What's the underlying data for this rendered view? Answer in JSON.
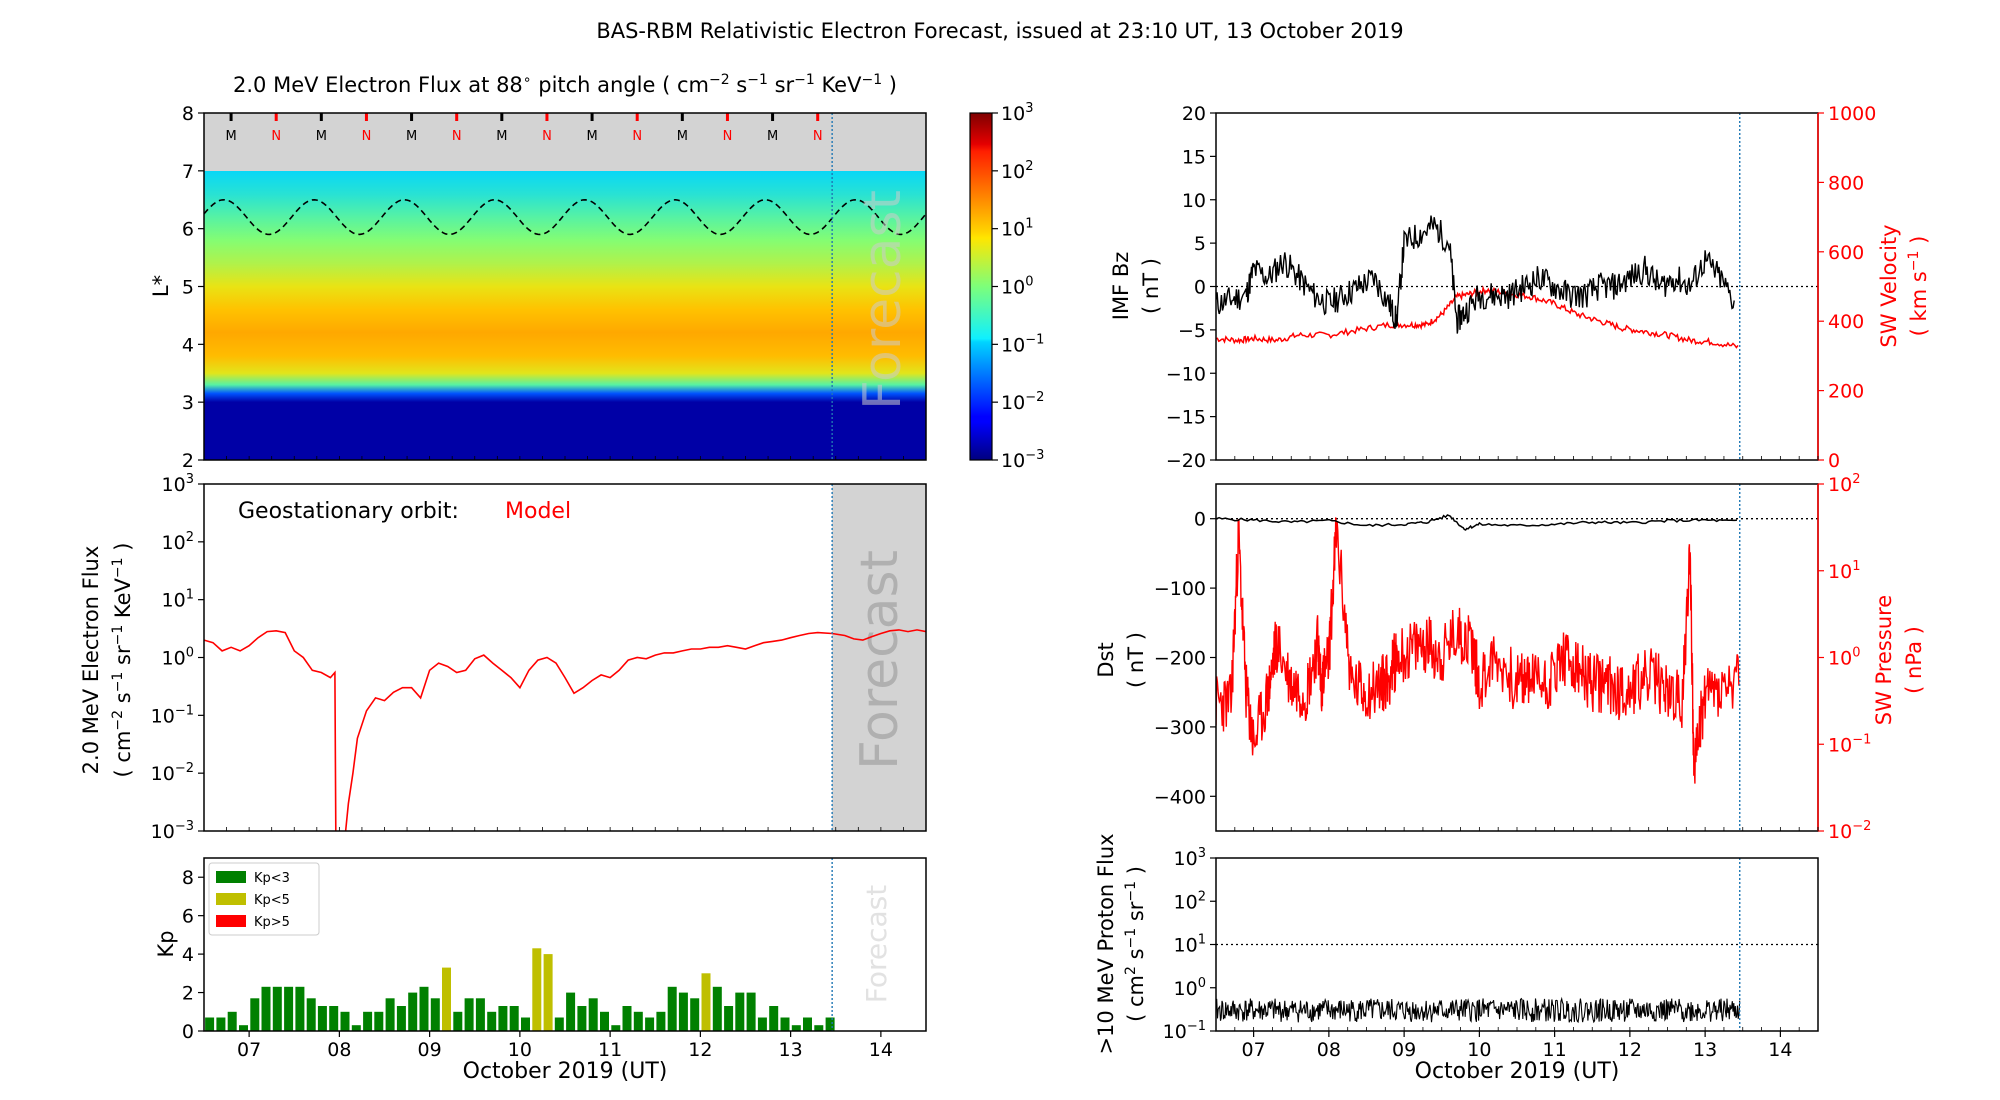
{
  "figure": {
    "title": "BAS-RBM Relativistic Electron Forecast, issued at 23:10 UT, 13 October 2019"
  },
  "colors": {
    "red": "#ff0000",
    "black": "#000000",
    "kp_low": "#008000",
    "kp_mid": "#bfbf00",
    "kp_high": "#ff0000",
    "forecast_shade": "#d3d3d3",
    "forecast_line": "#1f77b4",
    "mask": "#d3d3d3"
  },
  "chart_data": [
    {
      "type": "heatmap",
      "title": "2.0 MeV Electron Flux at 88$^\\circ$ pitch angle ( cm$^{-2}$ s$^{-1}$ sr$^{-1}$ KeV$^{-1}$ )",
      "title_parts": {
        "a": "2.0 MeV Electron Flux at 88",
        "deg": "∘",
        "b": " pitch angle ( cm",
        "e1": "−2",
        "c": " s",
        "e2": "−1",
        "d": " sr",
        "e3": "−1",
        "e": " KeV",
        "e4": "−1",
        "f": " )"
      },
      "ylabel": "L*",
      "xlim": [
        6.5,
        14.5
      ],
      "ylim": [
        2,
        8
      ],
      "yticks": [
        "2",
        "3",
        "4",
        "5",
        "6",
        "7",
        "8"
      ],
      "colorbar": {
        "scale": "log",
        "range": [
          0.001,
          1000
        ],
        "tick_base": "10",
        "tick_exps": [
          "−3",
          "−2",
          "−1",
          "0",
          "1",
          "2",
          "3"
        ]
      },
      "colormap": "jet",
      "profile": {
        "L": [
          2.0,
          3.0,
          3.15,
          3.3,
          3.5,
          3.8,
          4.2,
          4.6,
          5.0,
          5.4,
          5.8,
          6.2,
          6.6,
          7.0
        ],
        "log10_flux": [
          -2.8,
          -2.8,
          -1.8,
          -0.3,
          0.7,
          1.15,
          1.3,
          1.1,
          0.75,
          0.35,
          0.05,
          -0.3,
          -0.65,
          -0.9
        ]
      },
      "plasmapause_dashed": {
        "mean_L": 6.2,
        "amplitude": 0.3,
        "period_days": 1.0
      },
      "orbit_markers": {
        "labels": [
          "M",
          "N",
          "M",
          "N",
          "M",
          "N",
          "M",
          "N",
          "M",
          "N",
          "M",
          "N",
          "M",
          "N"
        ],
        "x": [
          6.8,
          7.3,
          7.8,
          8.3,
          8.8,
          9.3,
          9.8,
          10.3,
          10.8,
          11.3,
          11.8,
          12.3,
          12.8,
          13.3
        ],
        "colors": [
          "#000000",
          "#ff0000",
          "#000000",
          "#ff0000",
          "#000000",
          "#ff0000",
          "#000000",
          "#ff0000",
          "#000000",
          "#ff0000",
          "#000000",
          "#ff0000",
          "#000000",
          "#ff0000"
        ]
      },
      "forecast_start": 13.46,
      "forecast_label": "Forecast"
    },
    {
      "type": "line",
      "ylabel_line1": "2.0 MeV Electron Flux",
      "ylabel_line2_parts": {
        "a": "( cm",
        "e1": "−2",
        "b": " s",
        "e2": "−1",
        "c": " sr",
        "e3": "−1",
        "d": " KeV",
        "e4": "−1",
        "e": " )"
      },
      "yscale": "log",
      "ylim": [
        0.001,
        1000
      ],
      "ytick_base": "10",
      "ytick_exps": [
        "−3",
        "−2",
        "−1",
        "0",
        "1",
        "2",
        "3"
      ],
      "annotation_label": "Geostationary orbit:",
      "annotation_value": "Model",
      "series": [
        {
          "color": "#ff0000",
          "x": [
            6.5,
            6.6,
            6.7,
            6.8,
            6.9,
            7.0,
            7.1,
            7.2,
            7.3,
            7.4,
            7.5,
            7.6,
            7.7,
            7.8,
            7.9,
            7.95,
            7.96,
            7.98,
            8.05,
            8.1,
            8.15,
            8.2,
            8.3,
            8.4,
            8.5,
            8.6,
            8.7,
            8.8,
            8.9,
            9.0,
            9.1,
            9.2,
            9.3,
            9.4,
            9.5,
            9.6,
            9.7,
            9.8,
            9.9,
            10.0,
            10.1,
            10.2,
            10.3,
            10.4,
            10.5,
            10.6,
            10.7,
            10.8,
            10.9,
            11.0,
            11.1,
            11.2,
            11.3,
            11.4,
            11.5,
            11.6,
            11.7,
            11.8,
            11.9,
            12.0,
            12.1,
            12.2,
            12.3,
            12.4,
            12.5,
            12.6,
            12.7,
            12.8,
            12.9,
            13.0,
            13.1,
            13.2,
            13.3,
            13.46,
            13.6,
            13.7,
            13.8,
            13.9,
            14.0,
            14.1,
            14.2,
            14.3,
            14.4,
            14.5
          ],
          "y": [
            2.0,
            1.8,
            1.3,
            1.5,
            1.3,
            1.6,
            2.2,
            2.8,
            2.9,
            2.7,
            1.3,
            1.0,
            0.6,
            0.55,
            0.45,
            0.55,
            0.001,
            0.0005,
            0.0005,
            0.003,
            0.01,
            0.04,
            0.12,
            0.2,
            0.18,
            0.25,
            0.3,
            0.3,
            0.2,
            0.6,
            0.8,
            0.7,
            0.55,
            0.6,
            0.95,
            1.1,
            0.8,
            0.6,
            0.45,
            0.3,
            0.6,
            0.9,
            1.0,
            0.8,
            0.45,
            0.24,
            0.3,
            0.4,
            0.5,
            0.45,
            0.6,
            0.9,
            1.0,
            0.95,
            1.1,
            1.2,
            1.2,
            1.3,
            1.4,
            1.4,
            1.5,
            1.5,
            1.6,
            1.5,
            1.4,
            1.6,
            1.8,
            1.9,
            2.0,
            2.2,
            2.4,
            2.6,
            2.7,
            2.6,
            2.4,
            2.1,
            2.0,
            2.3,
            2.6,
            2.9,
            3.0,
            2.8,
            3.0,
            2.8
          ]
        }
      ],
      "forecast_start": 13.46,
      "forecast_label": "Forecast"
    },
    {
      "type": "bar",
      "ylabel": "Kp",
      "ylim": [
        0,
        9
      ],
      "yticks": [
        "0",
        "2",
        "4",
        "6",
        "8"
      ],
      "xlabel": "October 2019 (UT)",
      "xtick_labels": [
        "07",
        "08",
        "09",
        "10",
        "11",
        "12",
        "13",
        "14"
      ],
      "xtick_values": [
        7,
        8,
        9,
        10,
        11,
        12,
        13,
        14
      ],
      "legend": {
        "position": "upper-left",
        "entries": [
          "Kp<3",
          "Kp<5",
          "Kp>5"
        ]
      },
      "bar_width_days": 0.1,
      "x_start": 6.5,
      "values": [
        0.7,
        0.7,
        1.0,
        0.3,
        1.7,
        2.3,
        2.3,
        2.3,
        2.3,
        1.7,
        1.3,
        1.3,
        1.0,
        0.3,
        1.0,
        1.0,
        1.7,
        1.3,
        2.0,
        2.3,
        1.7,
        3.3,
        1.0,
        1.7,
        1.7,
        1.0,
        1.3,
        1.3,
        0.7,
        4.3,
        4.0,
        0.7,
        2.0,
        1.3,
        1.7,
        1.0,
        0.3,
        1.3,
        1.0,
        0.7,
        1.0,
        2.3,
        2.0,
        1.7,
        3.0,
        2.3,
        1.3,
        2.0,
        2.0,
        0.7,
        1.3,
        0.7,
        0.3,
        0.7,
        0.3,
        0.7
      ],
      "forecast_start": 13.46,
      "forecast_label": "Forecast"
    },
    {
      "type": "line",
      "ylabel_left_line1": "IMF Bz",
      "ylabel_left_line2": "( nT )",
      "ylabel_right_line1": "SW Velocity",
      "ylabel_right_line2_parts": {
        "a": "( km s",
        "e": "−1",
        "b": " )"
      },
      "ylim_left": [
        -20,
        20
      ],
      "yticks_left": [
        "−20",
        "−15",
        "−10",
        "−5",
        "0",
        "5",
        "10",
        "15",
        "20"
      ],
      "ylim_right": [
        0,
        1000
      ],
      "yticks_right": [
        "0",
        "200",
        "400",
        "600",
        "800",
        "1000"
      ],
      "series": [
        {
          "axis": "left",
          "color": "#000000",
          "x": [
            6.5,
            6.7,
            6.9,
            7.0,
            7.2,
            7.4,
            7.6,
            7.8,
            8.0,
            8.2,
            8.4,
            8.6,
            8.8,
            8.9,
            9.0,
            9.2,
            9.4,
            9.6,
            9.7,
            9.8,
            10.0,
            10.2,
            10.4,
            10.6,
            10.8,
            11.0,
            11.2,
            11.4,
            11.6,
            11.8,
            12.0,
            12.2,
            12.4,
            12.6,
            12.8,
            13.0,
            13.2,
            13.4
          ],
          "y": [
            -2,
            -1.5,
            -1,
            2,
            1,
            3,
            1,
            -1,
            -2,
            -1,
            0,
            1,
            -2,
            -4,
            5,
            6,
            7,
            5,
            -4,
            -3,
            -1,
            -1,
            -1,
            0,
            1,
            0,
            -1,
            -1,
            0,
            0,
            1,
            2,
            0,
            1,
            0,
            3,
            1,
            -2
          ]
        },
        {
          "axis": "right",
          "color": "#ff0000",
          "x": [
            6.5,
            6.8,
            7.0,
            7.3,
            7.6,
            8.0,
            8.4,
            8.8,
            9.1,
            9.3,
            9.5,
            9.7,
            9.9,
            10.1,
            10.4,
            10.7,
            11.0,
            11.3,
            11.6,
            11.9,
            12.2,
            12.5,
            12.8,
            13.1,
            13.46
          ],
          "y": [
            350,
            345,
            350,
            345,
            360,
            360,
            375,
            390,
            390,
            390,
            420,
            470,
            480,
            490,
            480,
            470,
            450,
            420,
            400,
            380,
            370,
            360,
            345,
            340,
            325
          ]
        }
      ],
      "forecast_start": 13.46
    },
    {
      "type": "line",
      "ylabel_left_line1": "Dst",
      "ylabel_left_line2": "( nT )",
      "ylabel_right_line1": "SW Pressure",
      "ylabel_right_line2": "( nPa )",
      "ylim_left": [
        -450,
        50
      ],
      "yticks_left": [
        "−400",
        "−300",
        "−200",
        "−100",
        "0"
      ],
      "ylim_right": [
        0.01,
        100
      ],
      "yscale_right": "log",
      "ytick_base": "10",
      "yticks_right_exps": [
        "−2",
        "−1",
        "0",
        "1",
        "2"
      ],
      "series": [
        {
          "axis": "left",
          "color": "#000000",
          "x": [
            6.5,
            7.0,
            7.5,
            8.0,
            8.5,
            9.0,
            9.3,
            9.6,
            9.8,
            10.0,
            10.5,
            11.0,
            11.5,
            12.0,
            12.5,
            13.0,
            13.46
          ],
          "y": [
            0,
            -2,
            -5,
            -3,
            -10,
            -8,
            -5,
            5,
            -15,
            -8,
            -10,
            -8,
            -5,
            -6,
            -3,
            -2,
            -4
          ]
        },
        {
          "axis": "right",
          "color": "#ff0000",
          "x": [
            6.5,
            6.7,
            6.8,
            6.9,
            7.0,
            7.2,
            7.3,
            7.5,
            7.7,
            7.85,
            7.9,
            8.0,
            8.1,
            8.3,
            8.5,
            8.7,
            8.8,
            8.9,
            9.1,
            9.3,
            9.5,
            9.7,
            9.9,
            10.0,
            10.2,
            10.5,
            10.7,
            10.9,
            11.1,
            11.3,
            11.5,
            11.7,
            11.9,
            12.1,
            12.3,
            12.5,
            12.7,
            12.8,
            12.85,
            13.0,
            13.2,
            13.46
          ],
          "y": [
            0.3,
            0.3,
            25,
            0.4,
            0.1,
            0.4,
            1.5,
            0.5,
            0.4,
            1.5,
            0.5,
            1.0,
            30,
            0.5,
            0.4,
            0.5,
            0.6,
            1.0,
            1.2,
            1.5,
            1.0,
            2.0,
            1.5,
            0.5,
            1.0,
            0.5,
            0.6,
            0.5,
            1.0,
            0.7,
            0.5,
            0.5,
            0.4,
            0.5,
            0.6,
            0.4,
            0.3,
            20,
            0.05,
            0.4,
            0.4,
            0.5
          ]
        }
      ],
      "forecast_start": 13.46
    },
    {
      "type": "line",
      "ylabel_line1": ">10 MeV Proton Flux",
      "ylabel_line2_parts": {
        "a": "( cm",
        "e1": "2",
        "b": " s",
        "e2": "−1",
        "c": " sr",
        "e3": "−1",
        "d": " )"
      },
      "yscale": "log",
      "ylim": [
        0.1,
        1000
      ],
      "ytick_base": "10",
      "ytick_exps": [
        "−1",
        "0",
        "1",
        "2",
        "3"
      ],
      "threshold": 10,
      "xlabel": "October 2019 (UT)",
      "xtick_labels": [
        "07",
        "08",
        "09",
        "10",
        "11",
        "12",
        "13",
        "14"
      ],
      "xtick_values": [
        7,
        8,
        9,
        10,
        11,
        12,
        13,
        14
      ],
      "xlim": [
        6.5,
        14.5
      ],
      "series": [
        {
          "color": "#000000",
          "x": [
            6.5,
            13.46
          ],
          "y_mean": 0.3
        }
      ],
      "forecast_start": 13.46
    }
  ]
}
